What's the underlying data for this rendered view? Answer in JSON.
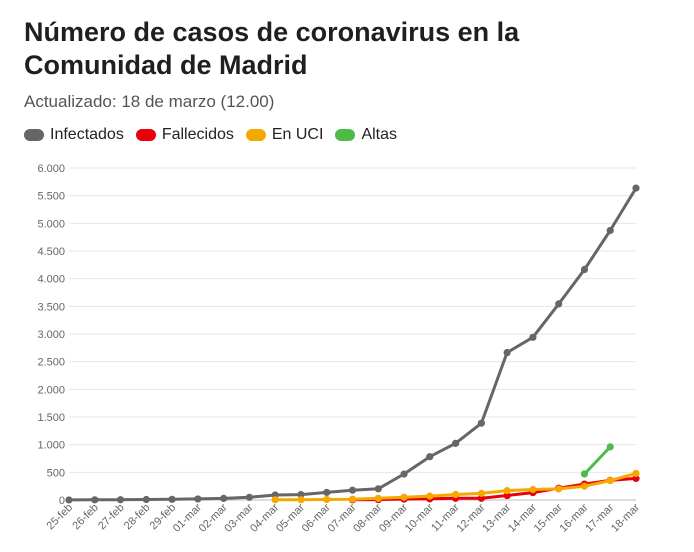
{
  "title": "Número de casos de coronavirus en la Comunidad de Madrid",
  "subtitle": "Actualizado: 18 de marzo (12.00)",
  "chart_data": {
    "type": "line",
    "x": [
      "25-feb",
      "26-feb",
      "27-feb",
      "28-feb",
      "29-feb",
      "01-mar",
      "02-mar",
      "03-mar",
      "04-mar",
      "05-mar",
      "06-mar",
      "07-mar",
      "08-mar",
      "09-mar",
      "10-mar",
      "11-mar",
      "12-mar",
      "13-mar",
      "14-mar",
      "15-mar",
      "16-mar",
      "17-mar",
      "18-mar"
    ],
    "ylim": [
      0,
      6000
    ],
    "yticks": [
      0,
      500,
      1000,
      1500,
      2000,
      2500,
      3000,
      3500,
      4000,
      4500,
      5000,
      5500,
      6000
    ],
    "ytick_labels": [
      "0",
      "500",
      "1.000",
      "1.500",
      "2.000",
      "2.500",
      "3.000",
      "3.500",
      "4.000",
      "4.500",
      "5.000",
      "5.500",
      "6.000"
    ],
    "grid": true,
    "legend_position": "top-left",
    "series": [
      {
        "name": "Infectados",
        "color": "#666666",
        "values": [
          1,
          3,
          5,
          9,
          12,
          19,
          29,
          49,
          90,
          98,
          137,
          177,
          202,
          469,
          782,
          1024,
          1388,
          2665,
          2940,
          3544,
          4165,
          4871,
          5637
        ]
      },
      {
        "name": "Fallecidos",
        "color": "#e8000b",
        "values": [
          null,
          null,
          null,
          null,
          null,
          null,
          null,
          null,
          null,
          null,
          null,
          3,
          8,
          16,
          21,
          31,
          31,
          81,
          133,
          213,
          288,
          355,
          390
        ]
      },
      {
        "name": "En UCI",
        "color": "#f5a800",
        "values": [
          null,
          null,
          null,
          null,
          null,
          null,
          null,
          null,
          5,
          5,
          9,
          15,
          30,
          50,
          70,
          100,
          120,
          170,
          190,
          200,
          250,
          350,
          480
        ]
      },
      {
        "name": "Altas",
        "color": "#4cbb47",
        "values": [
          null,
          null,
          null,
          null,
          null,
          null,
          null,
          null,
          null,
          null,
          null,
          null,
          null,
          null,
          null,
          null,
          null,
          null,
          null,
          null,
          470,
          960,
          null
        ]
      }
    ]
  }
}
